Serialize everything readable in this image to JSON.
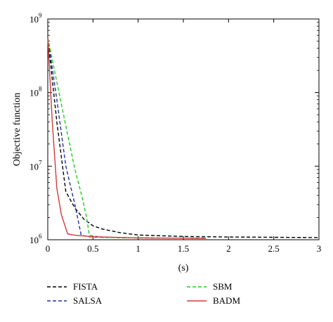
{
  "chart_data": {
    "type": "line",
    "xlabel": "(s)",
    "ylabel": "Objective function",
    "xlim": [
      0,
      3
    ],
    "ylim": [
      1000000,
      1000000000
    ],
    "yscale": "log",
    "x_ticks": [
      "0",
      "0.5",
      "1",
      "1.5",
      "2",
      "2.5",
      "3"
    ],
    "x_tick_values": [
      0,
      0.5,
      1,
      1.5,
      2,
      2.5,
      3
    ],
    "y_ticks": [
      {
        "base": "10",
        "exp": "6",
        "value": 1000000
      },
      {
        "base": "10",
        "exp": "7",
        "value": 10000000
      },
      {
        "base": "10",
        "exp": "8",
        "value": 100000000
      },
      {
        "base": "10",
        "exp": "9",
        "value": 1000000000
      }
    ],
    "grid": false,
    "legend_position": "bottom",
    "series": [
      {
        "name": "FISTA",
        "color": "#000000",
        "dash": "dashed",
        "points": [
          [
            0,
            560000000
          ],
          [
            0.1,
            40000000
          ],
          [
            0.2,
            4500000
          ],
          [
            0.3,
            2700000
          ],
          [
            0.4,
            1900000
          ],
          [
            0.5,
            1550000
          ],
          [
            0.6,
            1400000
          ],
          [
            0.8,
            1250000
          ],
          [
            1.0,
            1160000
          ],
          [
            1.5,
            1110000
          ],
          [
            2.0,
            1090000
          ],
          [
            2.5,
            1080000
          ],
          [
            3.0,
            1070000
          ]
        ]
      },
      {
        "name": "SALSA",
        "color": "#1f2ea8",
        "dash": "dashed",
        "points": [
          [
            0,
            560000000
          ],
          [
            0.1,
            80000000
          ],
          [
            0.2,
            10000000
          ],
          [
            0.3,
            3000000
          ],
          [
            0.37,
            1150000
          ],
          [
            0.45,
            1100000
          ],
          [
            0.6,
            1080000
          ],
          [
            1.0,
            1060000
          ],
          [
            1.5,
            1050000
          ],
          [
            1.75,
            1045000
          ]
        ]
      },
      {
        "name": "SBM",
        "color": "#22cc22",
        "dash": "dashed",
        "points": [
          [
            0,
            560000000
          ],
          [
            0.15,
            70000000
          ],
          [
            0.3,
            9000000
          ],
          [
            0.38,
            3800000
          ],
          [
            0.43,
            2000000
          ],
          [
            0.46,
            1150000
          ],
          [
            0.6,
            1080000
          ],
          [
            1.0,
            1060000
          ],
          [
            1.5,
            1050000
          ],
          [
            1.75,
            1045000
          ]
        ]
      },
      {
        "name": "BADM",
        "color": "#d33a3a",
        "dash": "solid",
        "points": [
          [
            0,
            560000000
          ],
          [
            0.05,
            40000000
          ],
          [
            0.1,
            5000000
          ],
          [
            0.15,
            2200000
          ],
          [
            0.22,
            1200000
          ],
          [
            0.3,
            1150000
          ],
          [
            0.5,
            1100000
          ],
          [
            1.0,
            1060000
          ],
          [
            1.5,
            1050000
          ],
          [
            1.75,
            1045000
          ]
        ]
      }
    ]
  }
}
